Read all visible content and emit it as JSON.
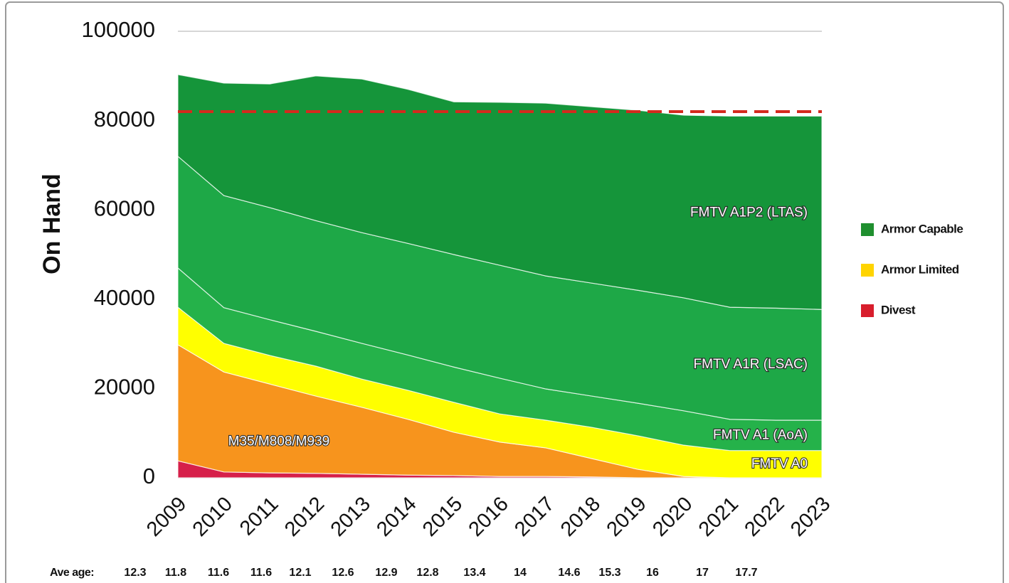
{
  "chart_data": {
    "type": "stacked_area",
    "y_label": "On Hand",
    "categories": [
      "2009",
      "2010",
      "2011",
      "2012",
      "2013",
      "2014",
      "2015",
      "2016",
      "2017",
      "2018",
      "2019",
      "2020",
      "2021",
      "2022",
      "2023"
    ],
    "series": [
      {
        "color": "#d6204a",
        "values": [
          3800,
          1300,
          1100,
          1000,
          800,
          600,
          500,
          300,
          300,
          200,
          0,
          0,
          0,
          0,
          0
        ]
      },
      {
        "name": "M35/M808/M939",
        "color": "#f7941d",
        "values": [
          26000,
          22400,
          19900,
          17300,
          15000,
          12500,
          9700,
          7700,
          6400,
          4100,
          1900,
          300,
          0,
          0,
          0
        ]
      },
      {
        "name": "FMTV A0",
        "color": "#ffff00",
        "values": [
          8400,
          6400,
          6400,
          6700,
          6300,
          6500,
          6700,
          6300,
          6200,
          7000,
          7500,
          7000,
          6100,
          6100,
          6100
        ]
      },
      {
        "name": "FMTV A1 (AoA)",
        "color": "#25b24a",
        "values": [
          8800,
          8000,
          8000,
          7800,
          8000,
          7900,
          7900,
          8000,
          7000,
          7000,
          7300,
          7700,
          7000,
          6800,
          6800
        ]
      },
      {
        "name": "FMTV A1R (LSAC)",
        "color": "#1ea847",
        "values": [
          25000,
          25100,
          25100,
          24800,
          24800,
          25000,
          25200,
          25300,
          25300,
          25300,
          25300,
          25300,
          25100,
          25100,
          24800
        ]
      },
      {
        "name": "FMTV A1P2 (LTAS)",
        "color": "#15953a",
        "values": [
          18300,
          25200,
          27700,
          32400,
          34400,
          34500,
          34200,
          36500,
          38700,
          39500,
          40300,
          40900,
          42800,
          43000,
          43300
        ]
      }
    ],
    "reference_line": {
      "value": 82000,
      "color": "#d42a1e"
    },
    "ylim": [
      0,
      100000
    ],
    "yticks": [
      0,
      20000,
      40000,
      60000,
      80000,
      100000
    ],
    "grid": true,
    "legend": [
      {
        "name": "Armor Capable",
        "color": "#1f8f2f"
      },
      {
        "name": "Armor Limited",
        "color": "#ffd400"
      },
      {
        "name": "Divest",
        "color": "#d81e2c"
      }
    ],
    "ave_age": {
      "label": "Ave age:",
      "values": [
        12.3,
        11.8,
        11.6,
        11.6,
        12.1,
        12.6,
        12.9,
        12.8,
        13.4,
        14,
        14.6,
        15.3,
        16,
        17,
        17.7
      ]
    }
  }
}
